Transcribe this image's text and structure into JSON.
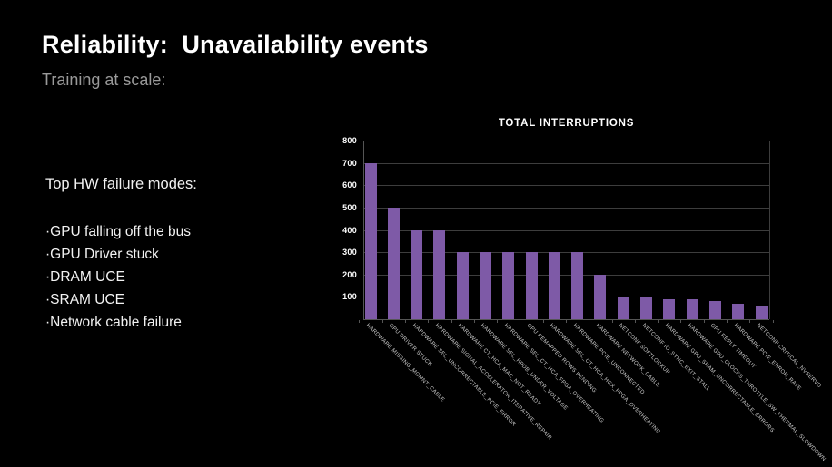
{
  "slide": {
    "title": "Reliability:  Unavailability events",
    "subtitle": "Training at scale:",
    "left_panel": {
      "heading": "Top HW failure modes:",
      "items": [
        "·GPU falling off the bus",
        "·GPU Driver stuck",
        "·DRAM UCE",
        "·SRAM UCE",
        "·Network cable failure"
      ]
    }
  },
  "colors": {
    "background": "#000000",
    "bar": "#7e5aa7",
    "gridline": "#3d3d3d",
    "axis_text": "#ffffff",
    "category_text": "#c9c9c9",
    "subtitle_text": "#9a9a9a"
  },
  "chart_data": {
    "type": "bar",
    "title": "TOTAL INTERRUPTIONS",
    "categories": [
      "HARDWARE MISSING_MGMNT_CABLE",
      "GPU DRIVER STUCK",
      "HARDWARE SEL_UNCORRECTABLE_PCIE_ERROR",
      "HARDWARE SIGNAL_ACCELERATOR_ITERATIVE_REPAIR",
      "HARDWARE CT_HCA_MAC_NOT_READY",
      "HARDWARE SEL_HPDB_UNDER_VOLTAGE",
      "HARDWARE SEL_CT_HCA_FPGA_OVERHEATING",
      "GPU REMAPPED ROWS PENDING",
      "HARDWARE SEL_CT_HCA_HGX_FPGA_OVERHEATING",
      "HARDWARE PCIE_UNCONNECTED",
      "HARDWARE NETWORK_CABLE",
      "NETCONF SOFTLOCKUP",
      "NETCONF IO_SYNC_EXIT_STALL",
      "HARDWARE GPU_SRAM_UNCORRECTABLE_ERRORS",
      "HARDWARE GPU_CLOCKS_THROTTLE_SW_THERMAL_SLOWDOWN",
      "GPU REPLY TIMEOUT",
      "HARDWARE PCIE_ERROR_RATE",
      "NETCONF CRITICAL_NVSERVD"
    ],
    "values": [
      700,
      500,
      400,
      400,
      300,
      300,
      300,
      300,
      300,
      300,
      200,
      100,
      100,
      90,
      90,
      80,
      70,
      60
    ],
    "xlabel": "",
    "ylabel": "",
    "ylim": [
      0,
      800
    ],
    "yticks": [
      100,
      200,
      300,
      400,
      500,
      600,
      700,
      800
    ],
    "grid": "horizontal",
    "legend": "none"
  }
}
